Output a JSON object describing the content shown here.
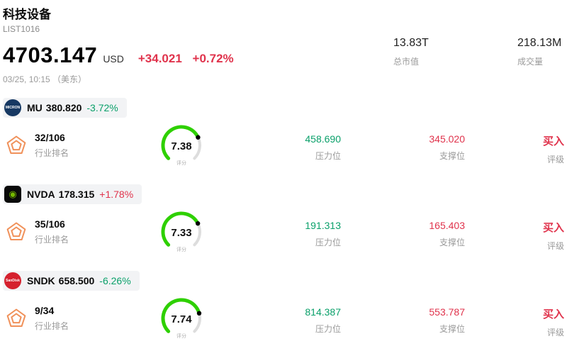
{
  "header": {
    "title": "科技设备",
    "subtitle": "LIST1016",
    "price": "4703.147",
    "currency": "USD",
    "change": "+34.021",
    "change_pct": "+0.72%",
    "timestamp": "03/25, 10:15 （美东）",
    "market_cap": {
      "value": "13.83T",
      "label": "总市值"
    },
    "volume": {
      "value": "218.13M",
      "label": "成交量"
    }
  },
  "labels": {
    "rank": "行业排名",
    "score": "评分",
    "resistance": "压力位",
    "support": "支撑位",
    "rating": "评级"
  },
  "colors": {
    "up": "#e0334c",
    "down": "#0aa06a",
    "gauge": "#2ed000",
    "pentagon": "#f0915a"
  },
  "stocks": [
    {
      "symbol": "MU",
      "price": "380.820",
      "change_pct": "-3.72%",
      "rank": "32/106",
      "score": 7.38,
      "resistance": "458.690",
      "support": "345.020",
      "rating": "买入",
      "logo": {
        "text": "MICRON",
        "bg": "#173963",
        "fg": "#ffffff",
        "shape": "circle"
      }
    },
    {
      "symbol": "NVDA",
      "price": "178.315",
      "change_pct": "+1.78%",
      "rank": "35/106",
      "score": 7.33,
      "resistance": "191.313",
      "support": "165.403",
      "rating": "买入",
      "logo": {
        "text": "◉",
        "bg": "#0a0a0a",
        "fg": "#76b900",
        "shape": "rounded"
      }
    },
    {
      "symbol": "SNDK",
      "price": "658.500",
      "change_pct": "-6.26%",
      "rank": "9/34",
      "score": 7.74,
      "resistance": "814.387",
      "support": "553.787",
      "rating": "买入",
      "logo": {
        "text": "SanDisk",
        "bg": "#d5212e",
        "fg": "#ffffff",
        "shape": "circle"
      }
    }
  ]
}
